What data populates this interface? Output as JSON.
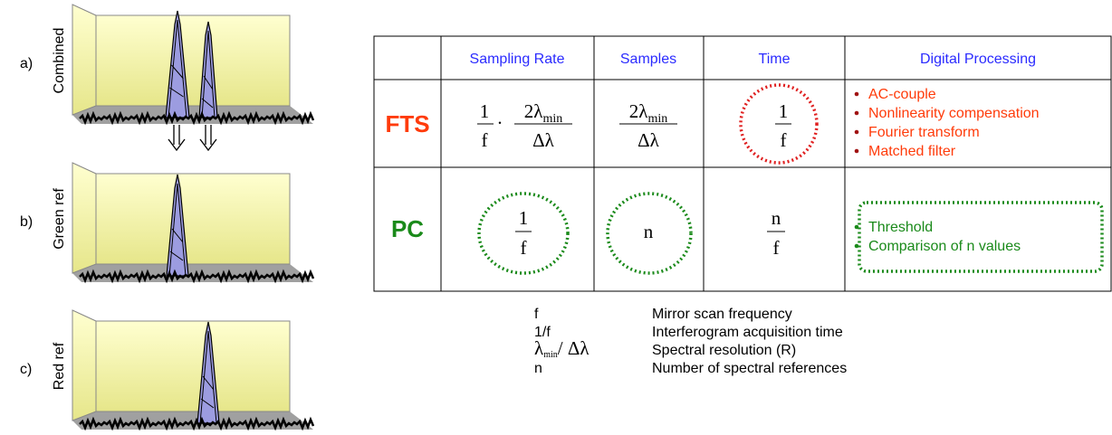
{
  "panels": [
    {
      "letter": "a)",
      "label": "Combined"
    },
    {
      "letter": "b)",
      "label": "Green ref"
    },
    {
      "letter": "c)",
      "label": "Red ref"
    }
  ],
  "table": {
    "columns": [
      "Sampling Rate",
      "Samples",
      "Time",
      "Digital Processing"
    ],
    "rows": [
      {
        "label": "FTS",
        "sampling_rate": {
          "left": {
            "num": "1",
            "den": "f"
          },
          "dot": "·",
          "right": {
            "num": "2λ",
            "num_sub": "min",
            "den": "Δλ"
          }
        },
        "samples": {
          "num": "2λ",
          "num_sub": "min",
          "den": "Δλ"
        },
        "time": {
          "num": "1",
          "den": "f"
        },
        "processing": [
          "AC-couple",
          "Nonlinearity compensation",
          "Fourier transform",
          "Matched filter"
        ]
      },
      {
        "label": "PC",
        "sampling_rate": {
          "num": "1",
          "den": "f"
        },
        "samples": "n",
        "time": {
          "num": "n",
          "den": "f"
        },
        "processing": [
          "Threshold",
          "Comparison of n values"
        ]
      }
    ]
  },
  "legend": [
    {
      "symbol": "f",
      "meaning": "Mirror scan frequency"
    },
    {
      "symbol": "1/f",
      "meaning": "Interferogram acquisition time"
    },
    {
      "symbol": "λ",
      "symbol_sub": "min",
      "symbol_rest": "/ Δλ",
      "meaning": "Spectral resolution (R)"
    },
    {
      "symbol": "n",
      "meaning": "Number of spectral references"
    }
  ]
}
